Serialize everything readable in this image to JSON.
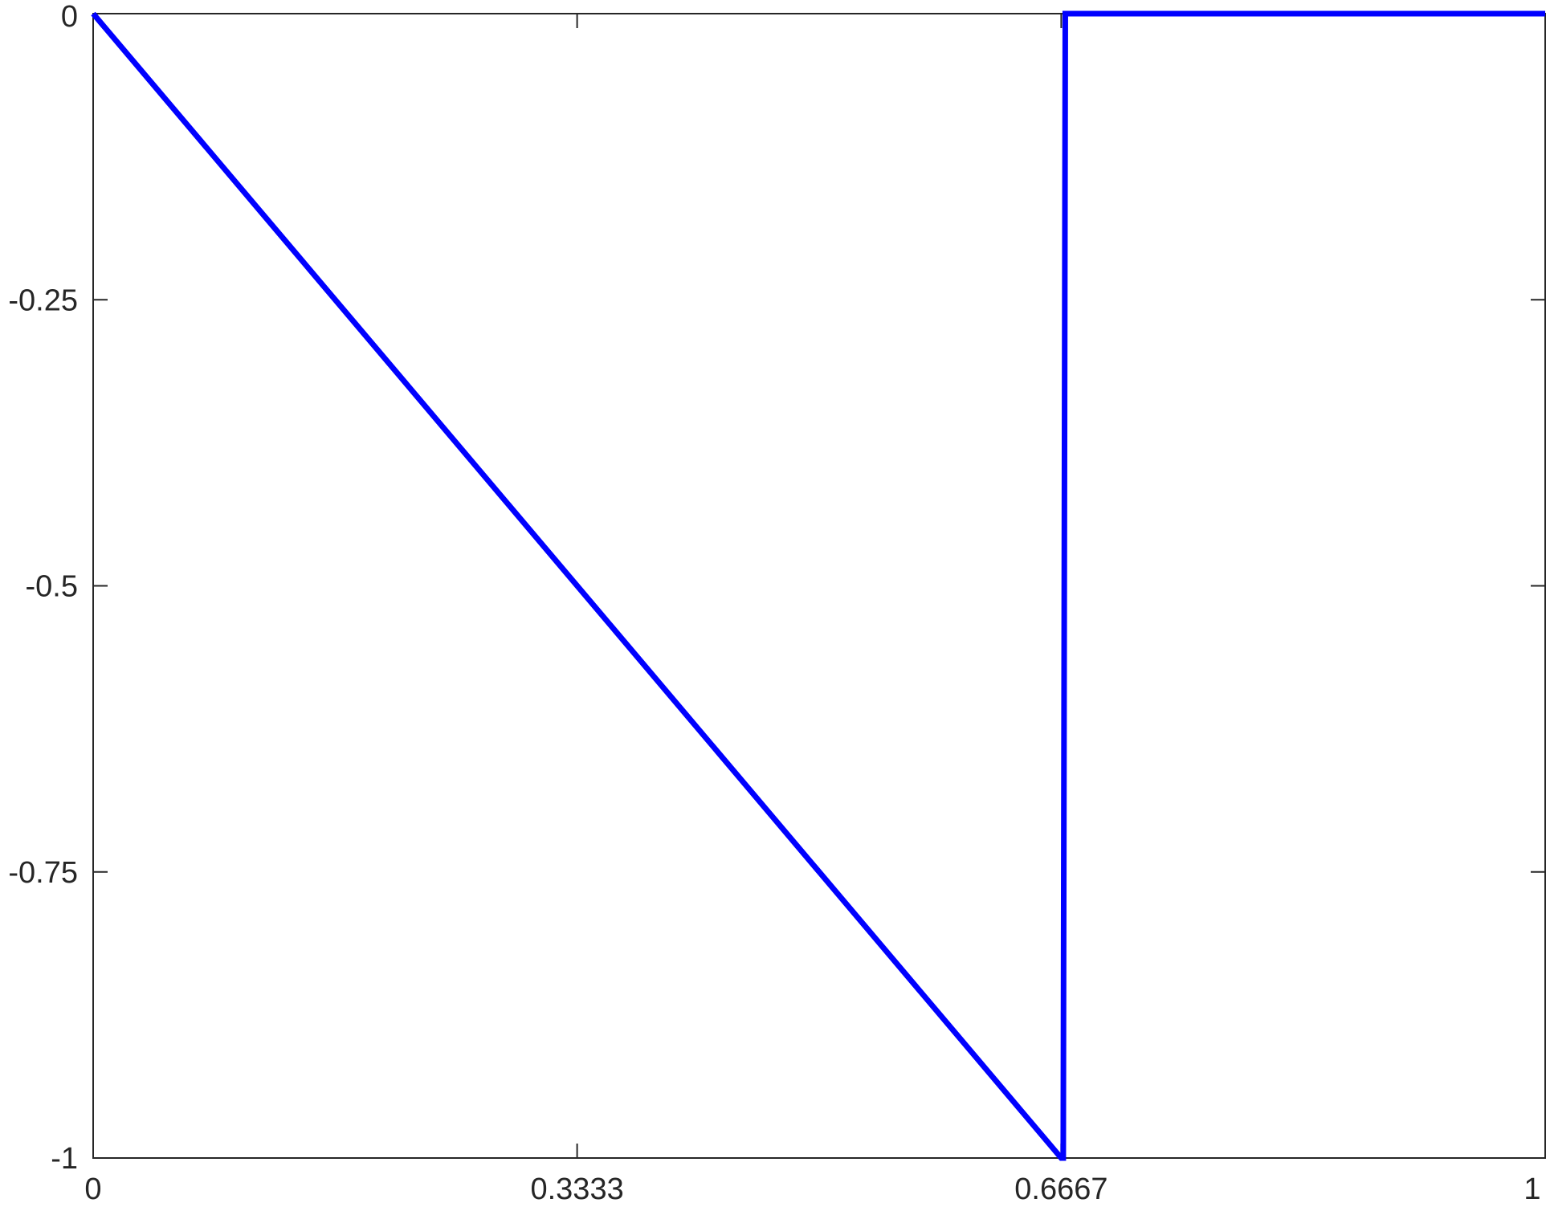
{
  "chart_data": {
    "type": "line",
    "title": "",
    "xlabel": "",
    "ylabel": "",
    "xlim": [
      0,
      1
    ],
    "ylim": [
      -1,
      0
    ],
    "grid": false,
    "x_ticks": [
      0,
      0.3333,
      0.6667,
      1
    ],
    "x_tick_labels": [
      "0",
      "0.3333",
      "0.6667",
      "1"
    ],
    "y_ticks": [
      0,
      -0.25,
      -0.5,
      -0.75,
      -1
    ],
    "y_tick_labels": [
      "0",
      "-0.25",
      "-0.5",
      "-0.75",
      "-1"
    ],
    "series": [
      {
        "color": "#0000ff",
        "x": [
          0,
          0.6667,
          0.6681,
          0.6695,
          1
        ],
        "y": [
          0,
          -1,
          -1,
          0,
          0
        ]
      }
    ]
  }
}
